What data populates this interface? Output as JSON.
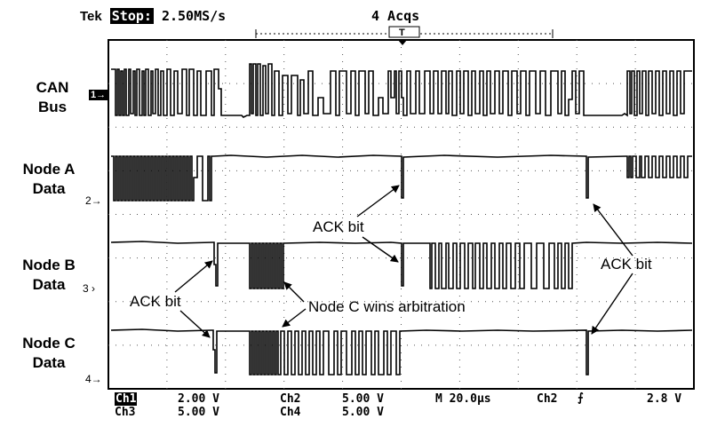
{
  "header": {
    "brand": "Tek",
    "state": "Stop:",
    "sample_rate": "2.50MS/s",
    "acquisitions": "4 Acqs",
    "trigger_marker": "T"
  },
  "channels": [
    {
      "label_line1": "CAN",
      "label_line2": "Bus",
      "marker": "1→"
    },
    {
      "label_line1": "Node A",
      "label_line2": "Data",
      "marker": "2→"
    },
    {
      "label_line1": "Node B",
      "label_line2": "Data",
      "marker": "3 ›"
    },
    {
      "label_line1": "Node C",
      "label_line2": "Data",
      "marker": "4→"
    }
  ],
  "annotations": {
    "ack_a": "ACK bit",
    "ack_b": "ACK bit",
    "ack_right": "ACK bit",
    "arbitration": "Node C wins arbitration"
  },
  "footer": {
    "ch1": "Ch1",
    "ch1_scale": "2.00 V",
    "ch2": "Ch2",
    "ch2_scale": "5.00 V",
    "ch3": "Ch3",
    "ch3_scale": "5.00 V",
    "ch4": "Ch4",
    "ch4_scale": "5.00 V",
    "timebase": "M 20.0µs",
    "trigger_source": "Ch2",
    "trigger_slope": "⨍",
    "trigger_level": "2.8 V"
  },
  "colors": {
    "trace": "#000000",
    "grid_dot": "#555555",
    "background": "#ffffff"
  }
}
